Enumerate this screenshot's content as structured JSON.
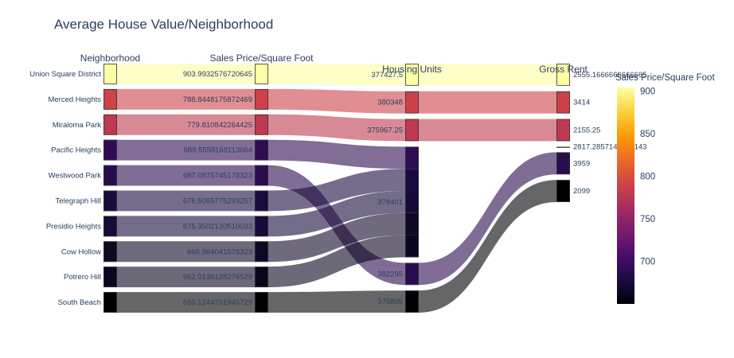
{
  "chart_data": {
    "type": "parallel_categories",
    "title": "Average House Value/Neighborhood",
    "dimensions": [
      {
        "label": "Neighborhood",
        "categories": [
          "Union Square District",
          "Merced Heights",
          "Miraloma Park",
          "Pacific Heights",
          "Westwood Park",
          "Telegraph Hill",
          "Presidio Heights",
          "Cow Hollow",
          "Potrero Hill",
          "South Beach"
        ]
      },
      {
        "label": "Sales Price/Square Foot",
        "categories": [
          "903.9932576720645",
          "788.8448175872469",
          "779.810842264425",
          "689.5558168113664",
          "687.0875745178323",
          "676.5065775293257",
          "675.3502120510033",
          "665.964041578323",
          "662.0136128276529",
          "650.1244791945729"
        ]
      },
      {
        "label": "Housing Units",
        "categories": [
          "377427.5",
          "380348",
          "375967.25",
          "378401",
          "382295",
          "375805"
        ]
      },
      {
        "label": "Gross Rent",
        "categories": [
          "2555.1666666666665",
          "3414",
          "2155.25",
          "2817.2857142857143",
          "3959",
          "2099"
        ]
      }
    ],
    "rows": [
      {
        "neighborhood": "Union Square District",
        "sale_price_sqr_foot": 903.9932576720645,
        "housing_units": 377427.5,
        "gross_rent": 2555.1666666666665
      },
      {
        "neighborhood": "Merced Heights",
        "sale_price_sqr_foot": 788.8448175872469,
        "housing_units": 380348,
        "gross_rent": 3414
      },
      {
        "neighborhood": "Miraloma Park",
        "sale_price_sqr_foot": 779.810842264425,
        "housing_units": 375967.25,
        "gross_rent": 2155.25
      },
      {
        "neighborhood": "Pacific Heights",
        "sale_price_sqr_foot": 689.5558168113664,
        "housing_units": 378401,
        "gross_rent": 2817.285714285714
      },
      {
        "neighborhood": "Westwood Park",
        "sale_price_sqr_foot": 687.0875745178323,
        "housing_units": 382295,
        "gross_rent": 3959
      },
      {
        "neighborhood": "Telegraph Hill",
        "sale_price_sqr_foot": 676.5065775293257,
        "housing_units": 378401,
        "gross_rent": 2817.285714285714
      },
      {
        "neighborhood": "Presidio Heights",
        "sale_price_sqr_foot": 675.3502120510033,
        "housing_units": 378401,
        "gross_rent": 2817.285714285714
      },
      {
        "neighborhood": "Cow Hollow",
        "sale_price_sqr_foot": 665.964041578323,
        "housing_units": 378401,
        "gross_rent": 2817.285714285714
      },
      {
        "neighborhood": "Potrero Hill",
        "sale_price_sqr_foot": 662.0136128276529,
        "housing_units": 378401,
        "gross_rent": 2817.285714285714
      },
      {
        "neighborhood": "South Beach",
        "sale_price_sqr_foot": 650.1244791945729,
        "housing_units": 375805,
        "gross_rent": 2099
      }
    ],
    "colorbar": {
      "title": "Sales Price/Square Foot",
      "range": [
        650.1244791945729,
        903.9932576720645
      ],
      "ticks": [
        700,
        750,
        800,
        850,
        900
      ],
      "colorscale": "inferno"
    }
  }
}
